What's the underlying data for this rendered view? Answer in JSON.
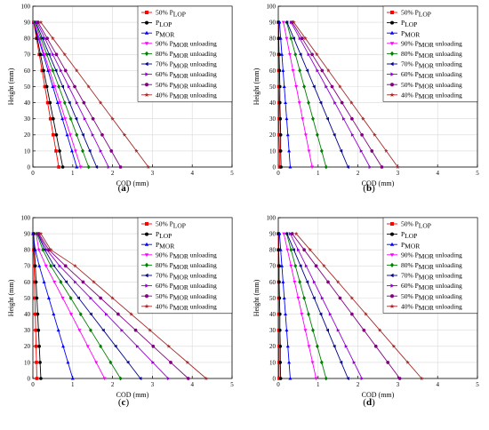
{
  "figure": {
    "panel_labels": [
      "(a)",
      "(b)",
      "(c)",
      "(d)"
    ]
  },
  "legend": [
    {
      "prefix": "50% P",
      "sub": "LOP",
      "suffix": "",
      "color": "#ff0000",
      "marker": "square"
    },
    {
      "prefix": "P",
      "sub": "LOP",
      "suffix": "",
      "color": "#000000",
      "marker": "circle"
    },
    {
      "prefix": "P",
      "sub": "MOR",
      "suffix": "",
      "color": "#0000ff",
      "marker": "triangle-up"
    },
    {
      "prefix": "90% P",
      "sub": "MOR",
      "suffix": " unloading",
      "color": "#ff00ff",
      "marker": "triangle-down"
    },
    {
      "prefix": "80% P",
      "sub": "MOR",
      "suffix": " unloading",
      "color": "#008000",
      "marker": "diamond"
    },
    {
      "prefix": "70% P",
      "sub": "MOR",
      "suffix": " unloading",
      "color": "#00008b",
      "marker": "triangle-left"
    },
    {
      "prefix": "60% P",
      "sub": "MOR",
      "suffix": " unloading",
      "color": "#9400d3",
      "marker": "triangle-right"
    },
    {
      "prefix": "50% P",
      "sub": "MOR",
      "suffix": " unloading",
      "color": "#800080",
      "marker": "hexagon"
    },
    {
      "prefix": "40% P",
      "sub": "MOR",
      "suffix": " unloading",
      "color": "#a52a2a",
      "marker": "star"
    }
  ],
  "chart_data": [
    {
      "type": "line",
      "panel": "(a)",
      "xlabel": "COD (mm)",
      "ylabel": "Height (mm)",
      "xlim": [
        0,
        5
      ],
      "ylim": [
        0,
        100
      ],
      "xticks": [
        0,
        1,
        2,
        3,
        4,
        5
      ],
      "yticks": [
        0,
        10,
        20,
        30,
        40,
        50,
        60,
        70,
        80,
        90,
        100
      ],
      "grid": true,
      "legend_position": "top-right",
      "y": [
        0,
        10,
        20,
        30,
        40,
        50,
        60,
        70,
        80,
        90
      ],
      "series": [
        {
          "name": "50% P_LOP",
          "x": [
            0.65,
            0.58,
            0.51,
            0.44,
            0.37,
            0.3,
            0.23,
            0.16,
            0.09,
            0.02
          ]
        },
        {
          "name": "P_LOP",
          "x": [
            0.75,
            0.67,
            0.59,
            0.51,
            0.43,
            0.35,
            0.27,
            0.19,
            0.11,
            0.03
          ]
        },
        {
          "name": "P_MOR",
          "x": [
            1.1,
            0.98,
            0.86,
            0.74,
            0.62,
            0.5,
            0.38,
            0.26,
            0.14,
            0.02
          ]
        },
        {
          "name": "90% P_MOR unloading",
          "x": [
            1.2,
            1.07,
            0.94,
            0.81,
            0.68,
            0.55,
            0.42,
            0.29,
            0.16,
            0.03
          ]
        },
        {
          "name": "80% P_MOR unloading",
          "x": [
            1.4,
            1.25,
            1.1,
            0.95,
            0.8,
            0.65,
            0.5,
            0.35,
            0.2,
            0.05
          ]
        },
        {
          "name": "70% P_MOR unloading",
          "x": [
            1.6,
            1.43,
            1.26,
            1.09,
            0.92,
            0.75,
            0.58,
            0.41,
            0.24,
            0.07
          ]
        },
        {
          "name": "60% P_MOR unloading",
          "x": [
            1.9,
            1.7,
            1.5,
            1.3,
            1.1,
            0.9,
            0.7,
            0.5,
            0.3,
            0.1
          ]
        },
        {
          "name": "50% P_MOR unloading",
          "x": [
            2.2,
            1.97,
            1.74,
            1.51,
            1.28,
            1.05,
            0.82,
            0.59,
            0.36,
            0.13
          ]
        },
        {
          "name": "40% P_MOR unloading",
          "x": [
            2.9,
            2.6,
            2.3,
            2.0,
            1.7,
            1.4,
            1.1,
            0.8,
            0.5,
            0.2
          ]
        }
      ]
    },
    {
      "type": "line",
      "panel": "(b)",
      "xlabel": "COD (mm)",
      "ylabel": "Height (mm)",
      "xlim": [
        0,
        5
      ],
      "ylim": [
        0,
        100
      ],
      "xticks": [
        0,
        1,
        2,
        3,
        4,
        5
      ],
      "yticks": [
        0,
        10,
        20,
        30,
        40,
        50,
        60,
        70,
        80,
        90,
        100
      ],
      "grid": true,
      "legend_position": "top-right",
      "y": [
        0,
        10,
        20,
        30,
        40,
        50,
        60,
        70,
        80,
        90
      ],
      "series": [
        {
          "name": "50% P_LOP",
          "x": [
            0.03,
            0.03,
            0.02,
            0.02,
            0.02,
            0.01,
            0.01,
            0.01,
            0.01,
            0.0
          ]
        },
        {
          "name": "P_LOP",
          "x": [
            0.07,
            0.06,
            0.06,
            0.05,
            0.04,
            0.04,
            0.03,
            0.02,
            0.01,
            0.01
          ]
        },
        {
          "name": "P_MOR",
          "x": [
            0.3,
            0.27,
            0.24,
            0.21,
            0.18,
            0.15,
            0.12,
            0.09,
            0.06,
            0.03
          ]
        },
        {
          "name": "90% P_MOR unloading",
          "x": [
            0.85,
            0.77,
            0.69,
            0.61,
            0.53,
            0.45,
            0.37,
            0.29,
            0.21,
            0.13
          ]
        },
        {
          "name": "80% P_MOR unloading",
          "x": [
            1.2,
            1.09,
            0.98,
            0.87,
            0.76,
            0.65,
            0.54,
            0.43,
            0.32,
            0.21
          ]
        },
        {
          "name": "70% P_MOR unloading",
          "x": [
            1.75,
            1.58,
            1.41,
            1.24,
            1.07,
            0.9,
            0.73,
            0.56,
            0.39,
            0.22
          ]
        },
        {
          "name": "60% P_MOR unloading",
          "x": [
            2.3,
            2.08,
            1.86,
            1.64,
            1.42,
            1.2,
            0.98,
            0.76,
            0.54,
            0.32
          ]
        },
        {
          "name": "50% P_MOR unloading",
          "x": [
            2.6,
            2.35,
            2.1,
            1.85,
            1.6,
            1.35,
            1.1,
            0.85,
            0.6,
            0.35
          ]
        },
        {
          "name": "40% P_MOR unloading",
          "x": [
            3.0,
            2.71,
            2.42,
            2.13,
            1.84,
            1.55,
            1.26,
            0.97,
            0.68,
            0.39
          ]
        }
      ]
    },
    {
      "type": "line",
      "panel": "(c)",
      "xlabel": "COD (mm)",
      "ylabel": "Height (mm)",
      "xlim": [
        0,
        5
      ],
      "ylim": [
        0,
        100
      ],
      "xticks": [
        0,
        1,
        2,
        3,
        4,
        5
      ],
      "yticks": [
        0,
        10,
        20,
        30,
        40,
        50,
        60,
        70,
        80,
        90,
        100
      ],
      "grid": true,
      "legend_position": "top-right",
      "y": [
        0,
        10,
        20,
        30,
        40,
        50,
        60,
        70,
        80,
        90
      ],
      "series": [
        {
          "name": "50% P_LOP",
          "x": [
            0.1,
            0.09,
            0.08,
            0.07,
            0.06,
            0.05,
            0.04,
            0.03,
            0.02,
            0.01
          ]
        },
        {
          "name": "P_LOP",
          "x": [
            0.2,
            0.18,
            0.16,
            0.14,
            0.12,
            0.1,
            0.08,
            0.06,
            0.04,
            0.02
          ]
        },
        {
          "name": "P_MOR",
          "x": [
            1.0,
            0.88,
            0.76,
            0.64,
            0.52,
            0.4,
            0.28,
            0.16,
            0.06,
            0.0
          ]
        },
        {
          "name": "90% P_MOR unloading",
          "x": [
            1.8,
            1.59,
            1.38,
            1.17,
            0.96,
            0.75,
            0.54,
            0.33,
            0.15,
            0.08
          ]
        },
        {
          "name": "80% P_MOR unloading",
          "x": [
            2.2,
            1.95,
            1.7,
            1.45,
            1.2,
            0.95,
            0.7,
            0.45,
            0.25,
            0.1
          ]
        },
        {
          "name": "70% P_MOR unloading",
          "x": [
            2.7,
            2.39,
            2.08,
            1.77,
            1.46,
            1.15,
            0.84,
            0.53,
            0.3,
            0.12
          ]
        },
        {
          "name": "60% P_MOR unloading",
          "x": [
            3.4,
            3.01,
            2.62,
            2.23,
            1.84,
            1.45,
            1.06,
            0.67,
            0.35,
            0.13
          ]
        },
        {
          "name": "50% P_MOR unloading",
          "x": [
            3.9,
            3.46,
            3.02,
            2.58,
            2.14,
            1.7,
            1.26,
            0.82,
            0.4,
            0.15
          ]
        },
        {
          "name": "40% P_MOR unloading",
          "x": [
            4.35,
            3.88,
            3.41,
            2.94,
            2.47,
            2.0,
            1.53,
            1.06,
            0.45,
            0.2
          ]
        }
      ]
    },
    {
      "type": "line",
      "panel": "(d)",
      "xlabel": "COD (mm)",
      "ylabel": "Height (mm)",
      "xlim": [
        0,
        5
      ],
      "ylim": [
        0,
        100
      ],
      "xticks": [
        0,
        1,
        2,
        3,
        4,
        5
      ],
      "yticks": [
        0,
        10,
        20,
        30,
        40,
        50,
        60,
        70,
        80,
        90,
        100
      ],
      "grid": true,
      "legend_position": "top-right",
      "y": [
        0,
        10,
        20,
        30,
        40,
        50,
        60,
        70,
        80,
        90
      ],
      "series": [
        {
          "name": "50% P_LOP",
          "x": [
            0.02,
            0.02,
            0.02,
            0.01,
            0.01,
            0.01,
            0.01,
            0.01,
            0.0,
            0.0
          ]
        },
        {
          "name": "P_LOP",
          "x": [
            0.06,
            0.05,
            0.05,
            0.04,
            0.04,
            0.03,
            0.02,
            0.02,
            0.01,
            0.01
          ]
        },
        {
          "name": "P_MOR",
          "x": [
            0.3,
            0.27,
            0.24,
            0.21,
            0.18,
            0.15,
            0.12,
            0.09,
            0.06,
            0.03
          ]
        },
        {
          "name": "90% P_MOR unloading",
          "x": [
            0.95,
            0.86,
            0.77,
            0.68,
            0.59,
            0.5,
            0.41,
            0.32,
            0.23,
            0.14
          ]
        },
        {
          "name": "80% P_MOR unloading",
          "x": [
            1.2,
            1.09,
            0.98,
            0.87,
            0.76,
            0.65,
            0.54,
            0.43,
            0.32,
            0.21
          ]
        },
        {
          "name": "70% P_MOR unloading",
          "x": [
            1.75,
            1.58,
            1.41,
            1.24,
            1.07,
            0.9,
            0.73,
            0.56,
            0.39,
            0.22
          ]
        },
        {
          "name": "60% P_MOR unloading",
          "x": [
            2.1,
            1.9,
            1.7,
            1.5,
            1.3,
            1.1,
            0.9,
            0.7,
            0.5,
            0.3
          ]
        },
        {
          "name": "50% P_MOR unloading",
          "x": [
            3.05,
            2.75,
            2.45,
            2.15,
            1.85,
            1.55,
            1.25,
            0.95,
            0.65,
            0.35
          ]
        },
        {
          "name": "40% P_MOR unloading",
          "x": [
            3.6,
            3.25,
            2.9,
            2.55,
            2.2,
            1.85,
            1.5,
            1.15,
            0.8,
            0.45
          ]
        }
      ]
    }
  ]
}
